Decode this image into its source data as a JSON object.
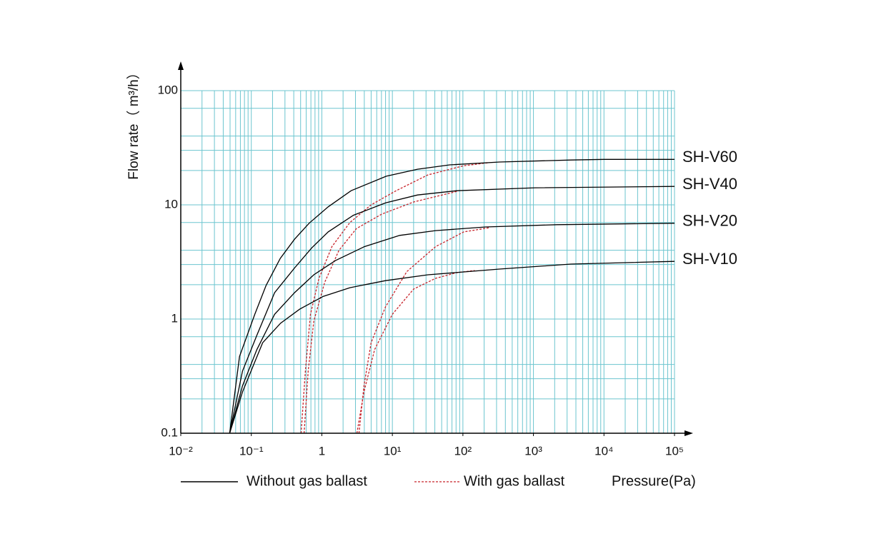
{
  "chart_data": {
    "type": "line",
    "log_x": true,
    "log_y": true,
    "grid": true,
    "minor_grid": true,
    "grid_color": "#6cc5cf",
    "y_label": "Flow rate（ m³/h）",
    "x_label": "Pressure(Pa)",
    "xlim": [
      0.01,
      100000
    ],
    "ylim": [
      0.1,
      100
    ],
    "xticks": [
      {
        "value": 0.01,
        "label": "10⁻²"
      },
      {
        "value": 0.1,
        "label": "10⁻¹"
      },
      1,
      {
        "value": 10,
        "label": "10¹"
      },
      {
        "value": 100,
        "label": "10²"
      },
      {
        "value": 1000,
        "label": "10³"
      },
      {
        "value": 10000,
        "label": "10⁴"
      },
      {
        "value": 100000,
        "label": "10⁵"
      }
    ],
    "yticks": [
      0.1,
      1,
      10,
      100
    ],
    "legend": [
      {
        "label": "Without gas ballast",
        "color": "#000000",
        "dashed": false
      },
      {
        "label": "With gas ballast",
        "color": "#c8242b",
        "dashed": true
      }
    ],
    "series": [
      {
        "name": "SH-V60",
        "x": [
          0.0493,
          0.068,
          0.112,
          0.162,
          0.258,
          0.41,
          0.66,
          1.23,
          2.6,
          8.2,
          22.7,
          65,
          330,
          3400,
          10000,
          100000
        ],
        "values": [
          0.1,
          0.47,
          1.1,
          1.97,
          3.4,
          5.0,
          6.9,
          9.6,
          13.3,
          17.8,
          20.5,
          22.4,
          23.7,
          24.7,
          25,
          25
        ],
        "ballast_x": [
          0.508,
          0.585,
          0.69,
          0.91,
          1.39,
          2.5,
          5,
          11.3,
          32,
          103,
          235
        ],
        "ballast_values": [
          0.1,
          0.35,
          1.1,
          2.27,
          4.3,
          7.0,
          10,
          13.3,
          18.3,
          22,
          23.4
        ]
      },
      {
        "name": "SH-V40",
        "x": [
          0.0493,
          0.075,
          0.12,
          0.214,
          0.41,
          0.72,
          1.23,
          2.8,
          8,
          22.7,
          82,
          1060,
          100000
        ],
        "values": [
          0.1,
          0.35,
          0.72,
          1.7,
          2.8,
          4.2,
          5.8,
          8.1,
          10.4,
          12.2,
          13.3,
          14.1,
          14.5
        ],
        "ballast_x": [
          0.56,
          0.64,
          0.77,
          1.1,
          1.75,
          3.1,
          7.1,
          20,
          82
        ],
        "ballast_values": [
          0.1,
          0.35,
          0.96,
          2.1,
          4.0,
          6.2,
          8.3,
          10.6,
          13.1
        ]
      },
      {
        "name": "SH-V20",
        "x": [
          0.0493,
          0.075,
          0.12,
          0.214,
          0.41,
          0.77,
          1.56,
          4,
          12.7,
          41,
          210,
          2150,
          100000
        ],
        "values": [
          0.1,
          0.26,
          0.54,
          1.1,
          1.7,
          2.44,
          3.25,
          4.3,
          5.4,
          5.95,
          6.4,
          6.7,
          6.9
        ],
        "ballast_x": [
          3.36,
          3.96,
          5,
          8,
          16,
          41,
          103,
          235
        ],
        "ballast_values": [
          0.1,
          0.26,
          0.62,
          1.28,
          2.6,
          4.3,
          5.8,
          6.3
        ]
      },
      {
        "name": "SH-V10",
        "x": [
          0.0493,
          0.075,
          0.145,
          0.26,
          0.485,
          1.05,
          2.5,
          8,
          32,
          330,
          3400,
          100000
        ],
        "values": [
          0.1,
          0.23,
          0.62,
          0.92,
          1.22,
          1.58,
          1.88,
          2.17,
          2.44,
          2.74,
          3.03,
          3.2
        ],
        "ballast_x": [
          3.14,
          3.96,
          5.6,
          10,
          20,
          41,
          82,
          147
        ],
        "ballast_values": [
          0.1,
          0.23,
          0.54,
          1.1,
          1.83,
          2.27,
          2.55,
          2.66
        ]
      }
    ]
  }
}
